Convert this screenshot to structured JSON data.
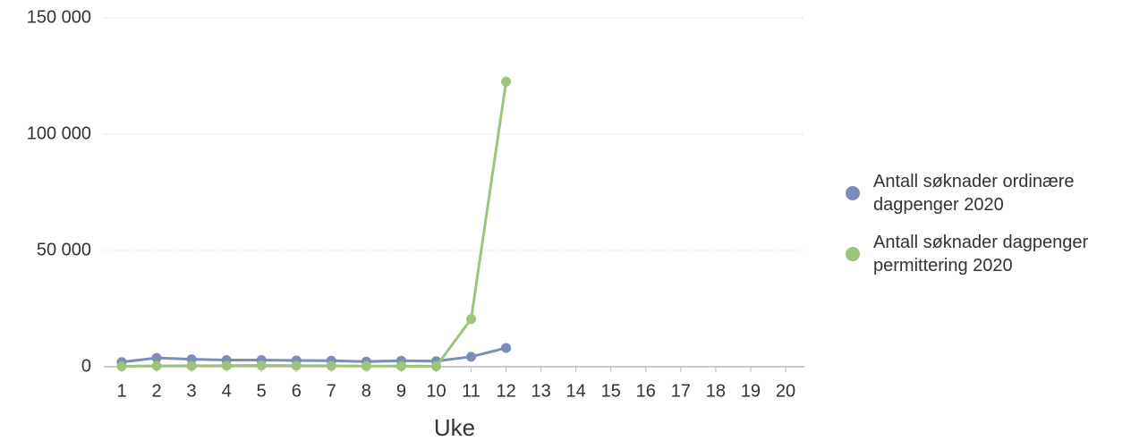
{
  "chart_data": {
    "type": "line",
    "x_label": "Uke",
    "categories": [
      "1",
      "2",
      "3",
      "4",
      "5",
      "6",
      "7",
      "8",
      "9",
      "10",
      "11",
      "12",
      "13",
      "14",
      "15",
      "16",
      "17",
      "18",
      "19",
      "20"
    ],
    "ylim": [
      0,
      150000
    ],
    "yticks": [
      0,
      {
        "value": 50000,
        "label": "50 000"
      },
      {
        "value": 100000,
        "label": "100 000"
      },
      {
        "value": 150000,
        "label": "150 000"
      }
    ],
    "grid": true,
    "legend": "right",
    "series": [
      {
        "name": "Antall søknader ordinære dagpenger 2020",
        "color": "#7b8db8",
        "values": [
          2000,
          3800,
          3200,
          2900,
          2900,
          2700,
          2600,
          2200,
          2600,
          2400,
          4300,
          8100,
          null,
          null,
          null,
          null,
          null,
          null,
          null,
          null
        ]
      },
      {
        "name": "Antall søknader dagpenger permittering 2020",
        "color": "#9dc47a",
        "values": [
          200,
          400,
          400,
          500,
          600,
          500,
          400,
          300,
          300,
          200,
          20500,
          122600,
          null,
          null,
          null,
          null,
          null,
          null,
          null,
          null
        ]
      }
    ]
  }
}
